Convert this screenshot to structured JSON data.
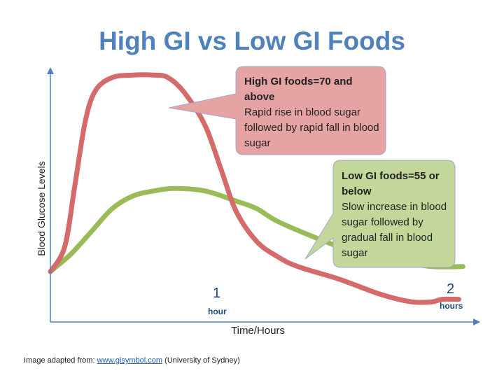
{
  "chart_data": {
    "type": "line",
    "title": "High GI vs Low GI Foods",
    "xlabel": "Time/Hours",
    "ylabel": "Blood Glucose Levels",
    "x_ticks": [
      {
        "x": 1,
        "number": "1",
        "unit": "hour"
      },
      {
        "x": 2,
        "number": "2",
        "unit": "hours"
      }
    ],
    "xlim": [
      0,
      2.05
    ],
    "ylim": [
      0,
      1
    ],
    "colors": {
      "high": "#d46a6a",
      "low": "#9bbb59",
      "axis": "#4f81bd"
    },
    "series": [
      {
        "key": "high",
        "x": [
          0,
          0.07,
          0.12,
          0.17,
          0.22,
          0.3,
          0.4,
          0.5,
          0.57,
          0.65,
          0.75,
          0.83,
          0.9,
          1.0,
          1.1,
          1.2,
          1.4,
          1.6,
          1.75,
          1.85,
          1.9,
          1.98
        ],
        "y": [
          0.2,
          0.3,
          0.55,
          0.8,
          0.92,
          0.97,
          0.98,
          0.98,
          0.97,
          0.91,
          0.78,
          0.6,
          0.44,
          0.32,
          0.26,
          0.22,
          0.17,
          0.11,
          0.08,
          0.08,
          0.09,
          0.09
        ]
      },
      {
        "key": "low",
        "x": [
          0,
          0.1,
          0.2,
          0.3,
          0.4,
          0.5,
          0.6,
          0.75,
          0.9,
          1.0,
          1.1,
          1.3,
          1.5,
          1.7,
          1.85,
          2.0
        ],
        "y": [
          0.2,
          0.27,
          0.36,
          0.45,
          0.5,
          0.52,
          0.53,
          0.52,
          0.48,
          0.45,
          0.4,
          0.33,
          0.27,
          0.24,
          0.22,
          0.22
        ]
      }
    ],
    "callouts": {
      "high": {
        "head": "High GI foods=70 and above",
        "body": "Rapid rise in blood sugar followed by rapid fall in blood sugar"
      },
      "low": {
        "head": "Low GI foods=55 or below",
        "body": "Slow increase in blood sugar followed by gradual fall in blood sugar"
      }
    }
  },
  "credit": {
    "prefix": "Image adapted from: ",
    "link": "www.gisymbol.com",
    "suffix": " (University of Sydney)"
  }
}
